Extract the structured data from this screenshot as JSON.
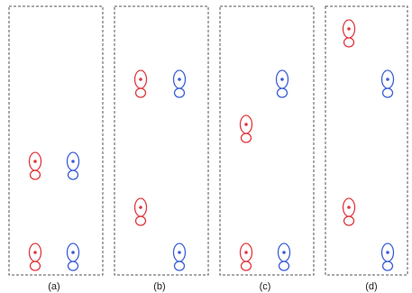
{
  "colors": {
    "red": "#e0393e",
    "blue": "#3b5fd6",
    "frame": "#555555"
  },
  "panels": [
    {
      "caption": "(a)",
      "markers": [
        {
          "color": "red"
        },
        {
          "color": "blue"
        },
        {
          "color": "red"
        },
        {
          "color": "blue"
        }
      ]
    },
    {
      "caption": "(b)",
      "markers": [
        {
          "color": "red"
        },
        {
          "color": "blue"
        },
        {
          "color": "red"
        },
        {
          "color": "blue"
        }
      ]
    },
    {
      "caption": "(c)",
      "markers": [
        {
          "color": "blue"
        },
        {
          "color": "red"
        },
        {
          "color": "red"
        },
        {
          "color": "blue"
        }
      ]
    },
    {
      "caption": "(d)",
      "markers": [
        {
          "color": "red"
        },
        {
          "color": "blue"
        },
        {
          "color": "red"
        },
        {
          "color": "blue"
        }
      ]
    }
  ]
}
